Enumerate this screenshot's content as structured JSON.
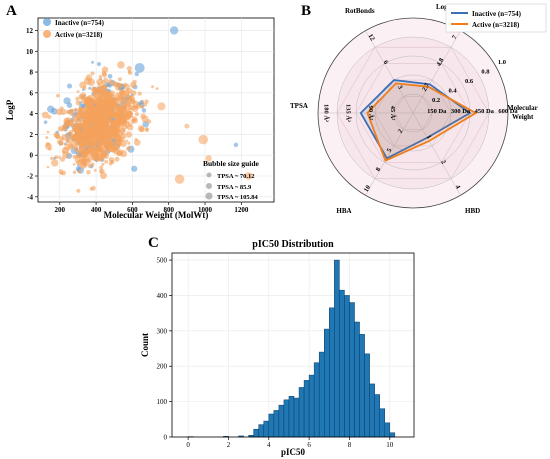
{
  "panels": {
    "a": "A",
    "b": "B",
    "c": "C"
  },
  "chart_data": [
    {
      "panel": "A",
      "type": "scatter",
      "title": "",
      "xlabel": "Molecular Weight (MolWt)",
      "ylabel": "LogP",
      "xlim": [
        80,
        1380
      ],
      "ylim": [
        -4.5,
        13.2
      ],
      "xticks": [
        200,
        400,
        600,
        800,
        1000,
        1200
      ],
      "yticks": [
        -4,
        -2,
        0,
        2,
        4,
        6,
        8,
        10,
        12
      ],
      "legend": [
        "Inactive (n=754)",
        "Active (n=3218)"
      ],
      "legend_position": "top-left",
      "series_colors": [
        "#5b9bd5",
        "#f5a15b"
      ],
      "size_guide": {
        "title": "Bubble size guide",
        "items": [
          "TPSA ~ 70.12",
          "TPSA ~ 85.9",
          "TPSA ~ 105.84"
        ]
      },
      "series": [
        {
          "name": "Inactive (n=754)",
          "cluster": {
            "x_center": 400,
            "x_spread": 95,
            "y_center": 3.2,
            "y_spread": 1.7
          },
          "outliers": [
            {
              "x": 830,
              "y": 12.0
            },
            {
              "x": 1170,
              "y": 1.0
            },
            {
              "x": 640,
              "y": 8.4
            },
            {
              "x": 610,
              "y": -1.3
            }
          ]
        },
        {
          "name": "Active (n=3218)",
          "cluster": {
            "x_center": 420,
            "x_spread": 100,
            "y_center": 3.0,
            "y_spread": 1.9
          },
          "outliers": [
            {
              "x": 900,
              "y": 2.8
            },
            {
              "x": 860,
              "y": -2.3
            },
            {
              "x": 760,
              "y": 4.7
            },
            {
              "x": 990,
              "y": 1.5
            },
            {
              "x": 1020,
              "y": -0.3
            },
            {
              "x": 1240,
              "y": -2.0
            }
          ]
        }
      ]
    },
    {
      "panel": "B",
      "type": "radar",
      "axes": [
        "LogP",
        "Molecular Weight",
        "HBD",
        "HBA",
        "TPSA",
        "RotBonds"
      ],
      "axis_tick_labels": {
        "LogP": [
          "2.7",
          "4.8",
          "7"
        ],
        "Molecular Weight": [
          "150 Da",
          "300 Da",
          "450 Da",
          "600 Da"
        ],
        "HBD": [
          "1",
          "2",
          "4"
        ],
        "HBA": [
          "2",
          "5",
          "8",
          "10"
        ],
        "TPSA": [
          "45 Å²",
          "90 Å²",
          "135 Å²",
          "180 Å²"
        ],
        "RotBonds": [
          "3",
          "6",
          "12"
        ]
      },
      "radial_ticks": [
        "0.2",
        "0.4",
        "0.6",
        "0.8",
        "1.0"
      ],
      "legend": [
        "Inactive (n=754)",
        "Active (n=3218)"
      ],
      "legend_position": "top-right",
      "series_colors": [
        "#3a6fb5",
        "#ef7d1a"
      ],
      "series": [
        {
          "name": "Inactive (n=754)",
          "values": [
            0.35,
            0.6,
            0.3,
            0.55,
            0.55,
            0.4
          ]
        },
        {
          "name": "Active (n=3218)",
          "values": [
            0.32,
            0.66,
            0.34,
            0.58,
            0.48,
            0.36
          ]
        }
      ]
    },
    {
      "panel": "C",
      "type": "bar",
      "title": "pIC50 Distribution",
      "xlabel": "pIC50",
      "ylabel": "Count",
      "xlim": [
        -0.8,
        11.2
      ],
      "ylim": [
        0,
        520
      ],
      "xticks": [
        0,
        2,
        4,
        6,
        8,
        10
      ],
      "yticks": [
        0,
        100,
        200,
        300,
        400,
        500
      ],
      "bar_color": "#1f77b4",
      "bin_start": 3.0,
      "bin_width": 0.25,
      "values": [
        5,
        22,
        35,
        45,
        65,
        75,
        90,
        105,
        115,
        110,
        140,
        160,
        175,
        210,
        240,
        305,
        365,
        500,
        415,
        400,
        380,
        325,
        290,
        235,
        150,
        120,
        80,
        40,
        12
      ],
      "extra_bins": [
        {
          "x": 0.0,
          "value": 1
        },
        {
          "x": 1.75,
          "value": 2
        },
        {
          "x": 2.5,
          "value": 3
        }
      ]
    }
  ]
}
